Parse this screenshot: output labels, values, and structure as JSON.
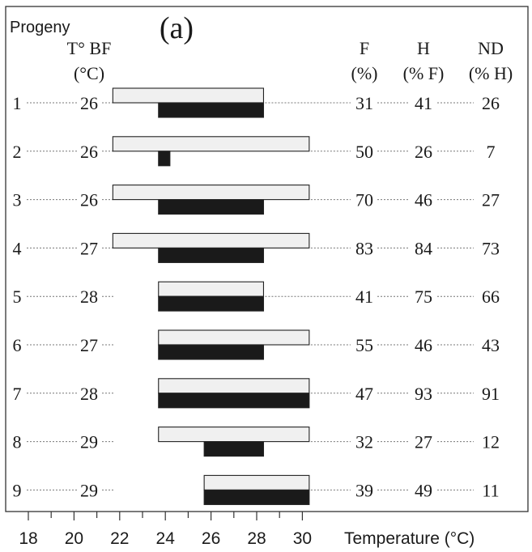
{
  "chart_data": {
    "type": "bar",
    "panel_label": "(a)",
    "row_header": "Progeny",
    "column_headers": {
      "tbf": [
        "T° BF",
        "(°C)"
      ],
      "f": [
        "F",
        "(%)"
      ],
      "h": [
        "H",
        "(% F)"
      ],
      "nd": [
        "ND",
        "(% H)"
      ]
    },
    "xlabel": "Temperature (°C)",
    "xlim": [
      17,
      31.5
    ],
    "x_ticks": [
      18,
      20,
      22,
      24,
      26,
      28,
      30
    ],
    "x_minor_step": 1,
    "series": [
      {
        "key": "light",
        "color": "#f0f0f0"
      },
      {
        "key": "dark",
        "color": "#1a1a1a"
      }
    ],
    "rows": [
      {
        "progeny": "1",
        "tbf": "26",
        "f": "31",
        "h": "41",
        "nd": "26",
        "light": [
          21.7,
          28.3
        ],
        "dark": [
          23.7,
          28.3
        ]
      },
      {
        "progeny": "2",
        "tbf": "26",
        "f": "50",
        "h": "26",
        "nd": "7",
        "light": [
          21.7,
          30.3
        ],
        "dark": [
          23.7,
          24.2
        ]
      },
      {
        "progeny": "3",
        "tbf": "26",
        "f": "70",
        "h": "46",
        "nd": "27",
        "light": [
          21.7,
          30.3
        ],
        "dark": [
          23.7,
          28.3
        ]
      },
      {
        "progeny": "4",
        "tbf": "27",
        "f": "83",
        "h": "84",
        "nd": "73",
        "light": [
          21.7,
          30.3
        ],
        "dark": [
          23.7,
          28.3
        ]
      },
      {
        "progeny": "5",
        "tbf": "28",
        "f": "41",
        "h": "75",
        "nd": "66",
        "light": [
          23.7,
          28.3
        ],
        "dark": [
          23.7,
          28.3
        ]
      },
      {
        "progeny": "6",
        "tbf": "27",
        "f": "55",
        "h": "46",
        "nd": "43",
        "light": [
          23.7,
          30.3
        ],
        "dark": [
          23.7,
          28.3
        ]
      },
      {
        "progeny": "7",
        "tbf": "28",
        "f": "47",
        "h": "93",
        "nd": "91",
        "light": [
          23.7,
          30.3
        ],
        "dark": [
          23.7,
          30.3
        ]
      },
      {
        "progeny": "8",
        "tbf": "29",
        "f": "32",
        "h": "27",
        "nd": "12",
        "light": [
          23.7,
          30.3
        ],
        "dark": [
          25.7,
          28.3
        ]
      },
      {
        "progeny": "9",
        "tbf": "29",
        "f": "39",
        "h": "49",
        "nd": "11",
        "light": [
          25.7,
          30.3
        ],
        "dark": [
          25.7,
          30.3
        ]
      }
    ]
  }
}
